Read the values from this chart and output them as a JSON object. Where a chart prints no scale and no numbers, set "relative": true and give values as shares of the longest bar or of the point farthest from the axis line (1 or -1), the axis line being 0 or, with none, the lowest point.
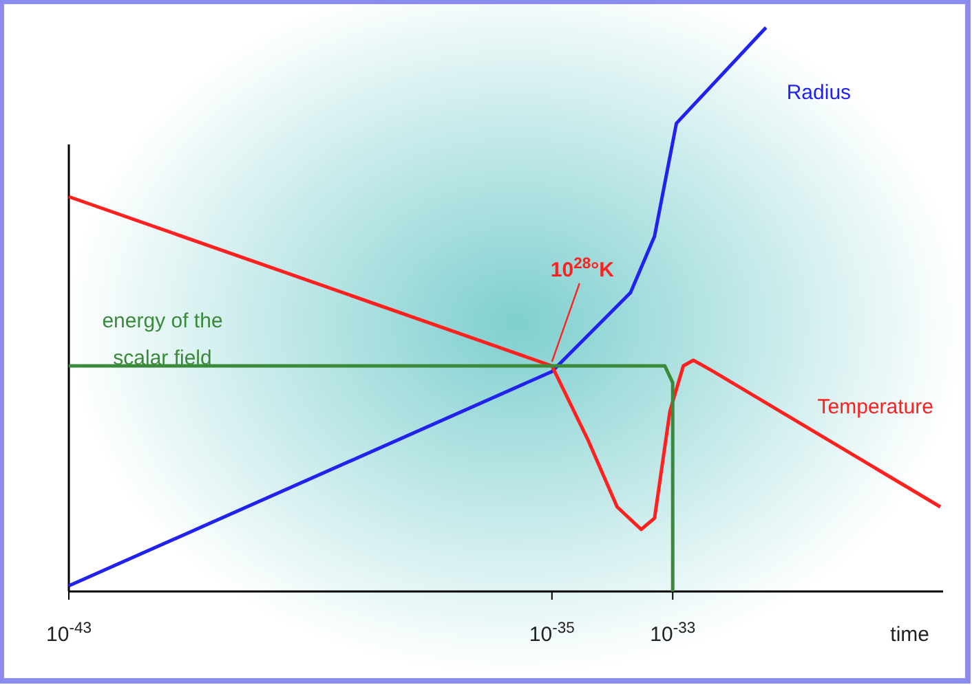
{
  "chart_data": {
    "type": "line",
    "relative": true,
    "log": "x",
    "xlabel": "time",
    "xlim": [
      1e-43,
      3e-29
    ],
    "xticks": [
      {
        "value": 1e-43,
        "label": "10$^{-43}$"
      },
      {
        "value": 1e-35,
        "label": "10$^{-35}$"
      },
      {
        "value": 1e-33,
        "label": "10$^{-33}$"
      }
    ],
    "series": [
      {
        "name": "Radius",
        "color": "#2222ee",
        "x": [
          1e-43,
          1e-35,
          2e-34,
          5e-34,
          1.15e-33,
          3.5e-32
        ],
        "values": [
          0.01,
          0.39,
          0.53,
          0.63,
          0.83,
          1.0
        ]
      },
      {
        "name": "Temperature",
        "color": "#ff2020",
        "x": [
          1e-43,
          1e-35,
          3.9e-35,
          1.2e-34,
          3e-34,
          5e-34,
          9e-34,
          1.5e-33,
          2.2e-33,
          4.7e-33,
          2.7e-29
        ],
        "values": [
          0.7,
          0.4,
          0.27,
          0.15,
          0.11,
          0.13,
          0.32,
          0.4,
          0.41,
          0.39,
          0.15
        ]
      },
      {
        "name": "energy of the scalar field",
        "color": "#3a8a3a",
        "x": [
          1e-43,
          7.4e-34,
          1e-33,
          1e-33
        ],
        "values": [
          0.4,
          0.4,
          0.37,
          0
        ]
      }
    ],
    "annotations": [
      {
        "text": "10$^{28}$°K",
        "x": 1e-35,
        "y": 0.4
      }
    ],
    "legend": false,
    "marker": "none",
    "line_style": "solid"
  }
}
